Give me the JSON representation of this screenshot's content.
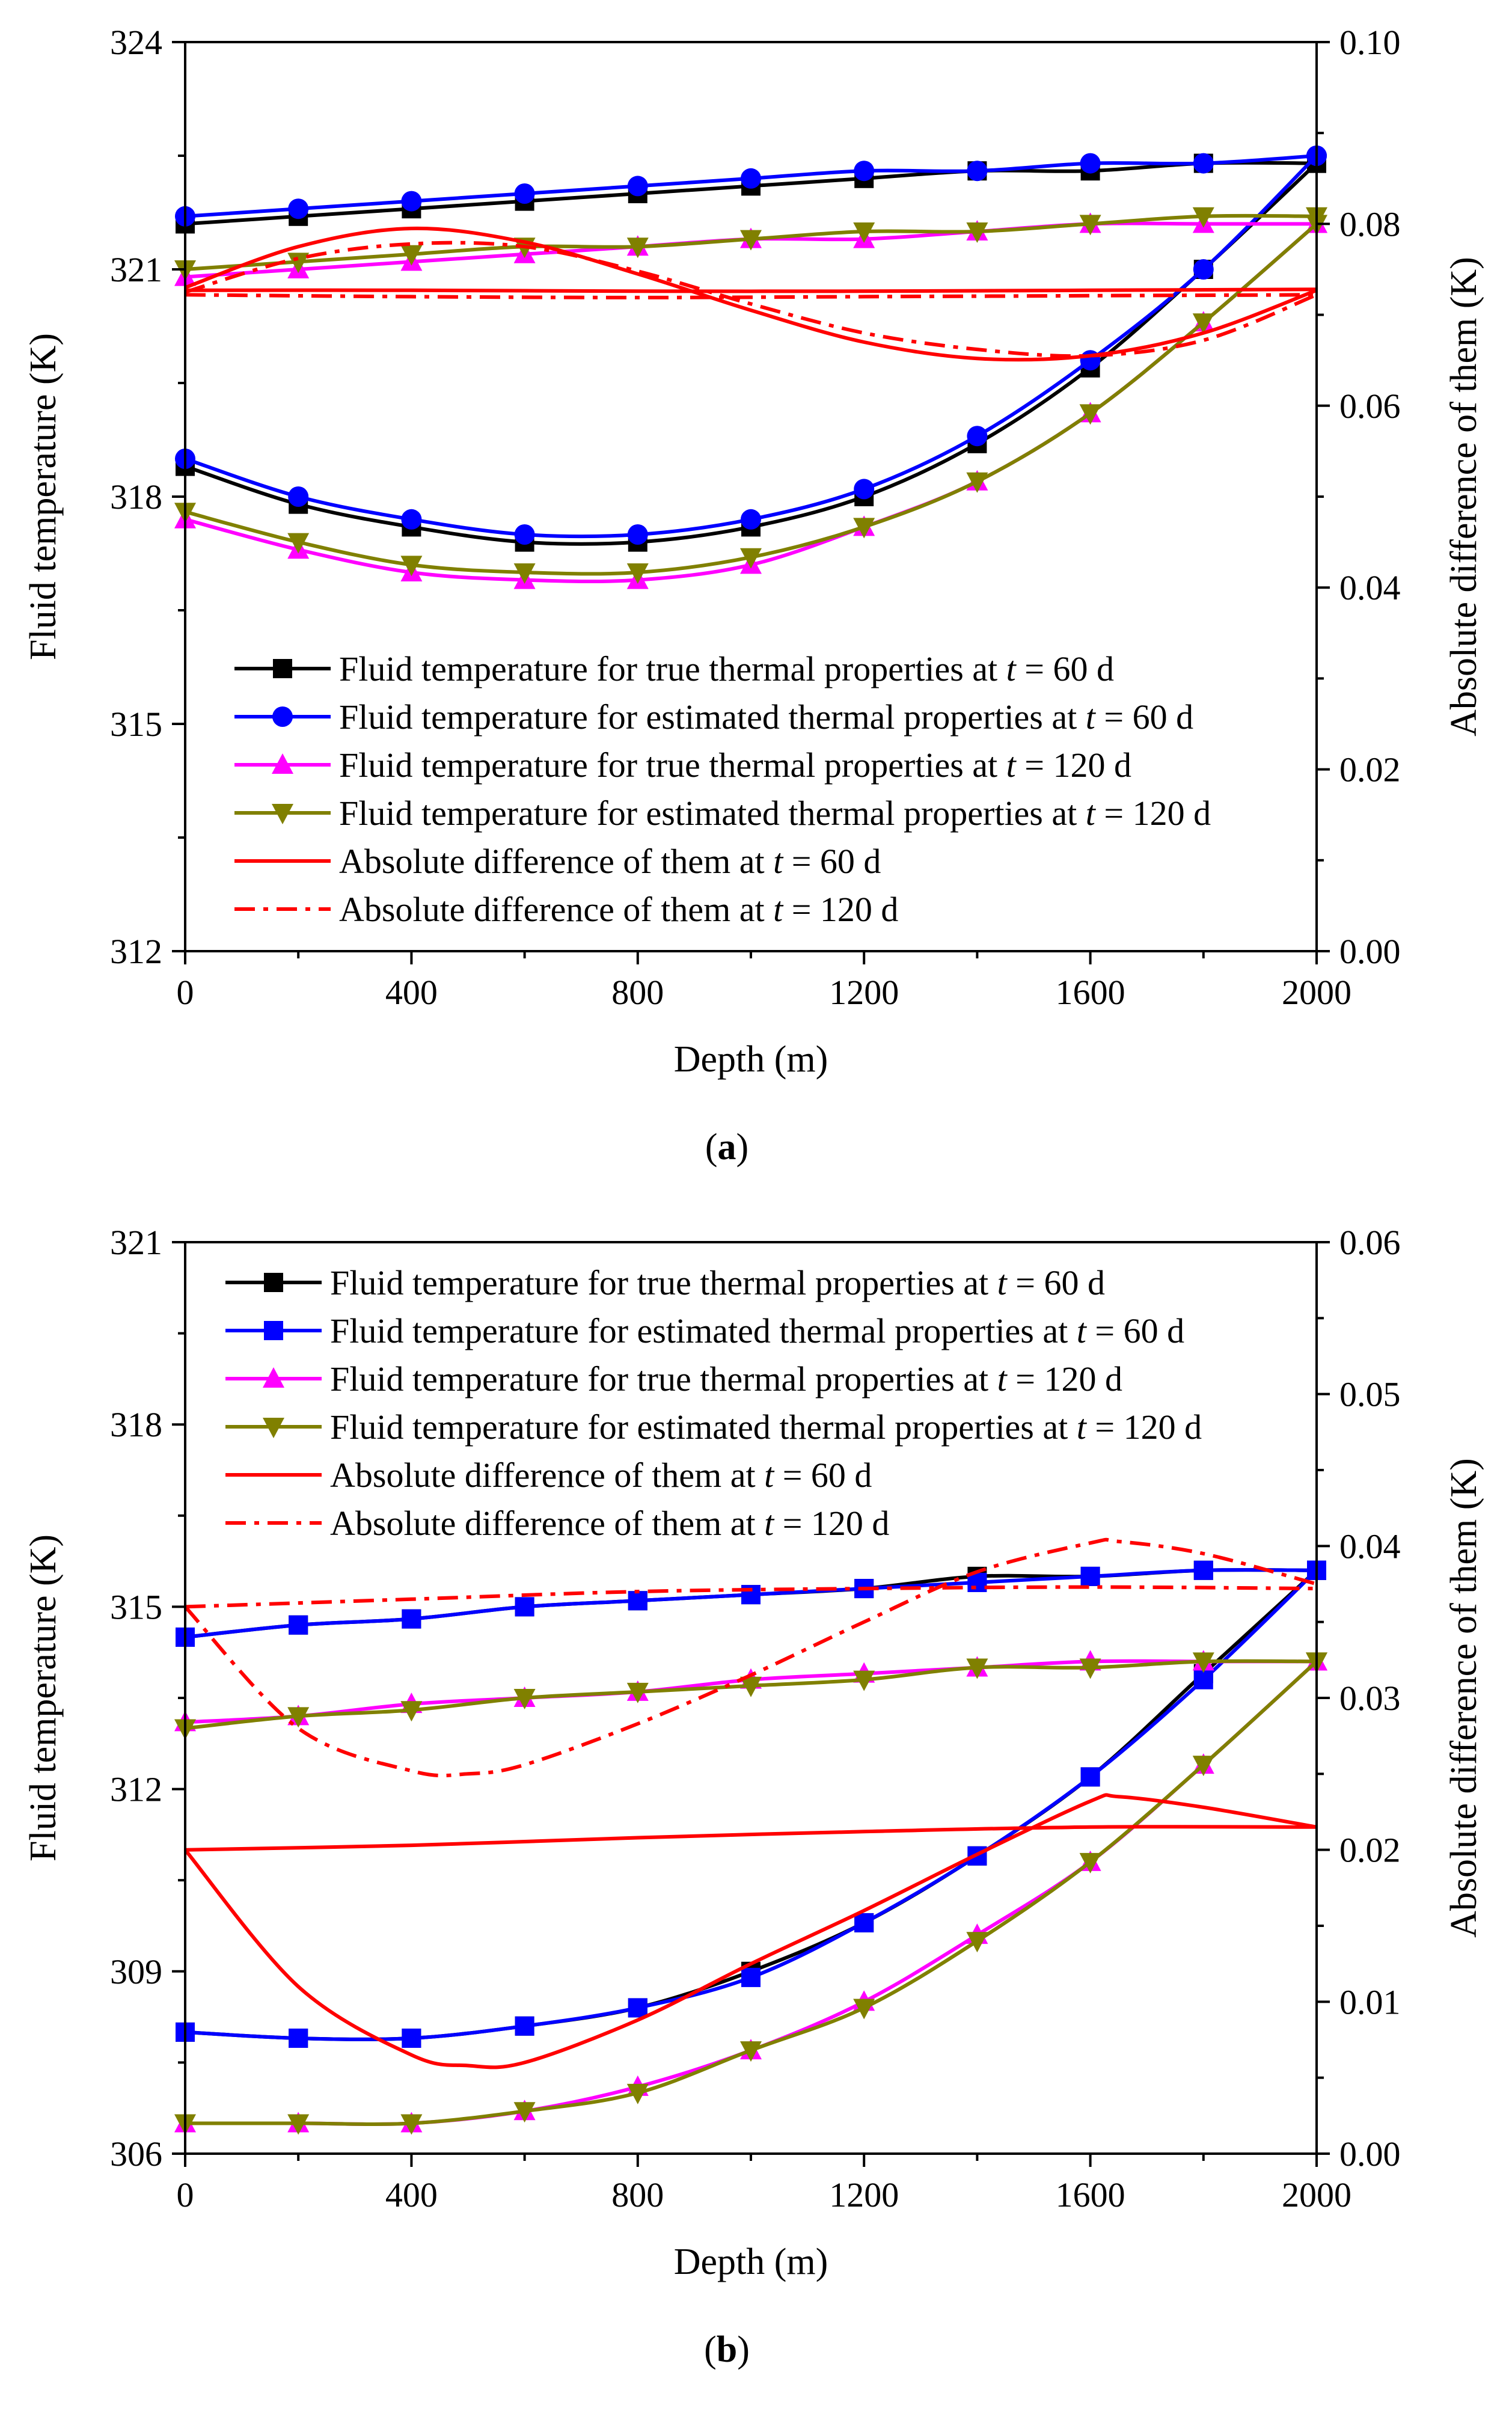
{
  "chart_data": [
    {
      "type": "line",
      "panel_label": "a",
      "xlabel": "Depth (m)",
      "ylabel": "Fluid temperature (K)",
      "y2label": "Absolute difference of them (K)",
      "xlim": [
        0,
        2000
      ],
      "ylim": [
        312,
        324
      ],
      "y2lim": [
        0,
        0.1
      ],
      "xticks": [
        0,
        400,
        800,
        1200,
        1600,
        2000
      ],
      "yticks": [
        312,
        315,
        318,
        321,
        324
      ],
      "y2ticks": [
        "0.00",
        "0.02",
        "0.04",
        "0.06",
        "0.08",
        "0.10"
      ],
      "grid": false,
      "legend_position": "center-left",
      "series": [
        {
          "name": "Fluid temperature for true thermal properties at t = 60 d",
          "legend_prefix": "Fluid temperature for true thermal properties at ",
          "legend_suffix": " = 60 d",
          "axis": "left",
          "color": "#000000",
          "marker": "square",
          "dash": "solid",
          "line_color": "#000000",
          "x": [
            0,
            200,
            400,
            600,
            800,
            1000,
            1200,
            1400,
            1600,
            1800,
            2000
          ],
          "y": [
            318.4,
            317.9,
            317.6,
            317.4,
            317.4,
            317.6,
            318.0,
            318.7,
            319.7,
            321.0,
            322.4
          ],
          "x2": [
            0,
            200,
            400,
            600,
            800,
            1000,
            1200,
            1400,
            1600,
            1800,
            2000
          ],
          "y2": [
            321.6,
            321.7,
            321.8,
            321.9,
            322.0,
            322.1,
            322.2,
            322.3,
            322.3,
            322.4,
            322.4
          ]
        },
        {
          "name": "Fluid temperature for estimated thermal properties at t = 60 d",
          "legend_prefix": "Fluid temperature for estimated thermal properties at ",
          "legend_suffix": " = 60 d",
          "axis": "left",
          "color": "#0000ff",
          "marker": "circle",
          "dash": "solid",
          "line_color": "#0000ff",
          "x": [
            0,
            200,
            400,
            600,
            800,
            1000,
            1200,
            1400,
            1600,
            1800,
            2000
          ],
          "y": [
            318.5,
            318.0,
            317.7,
            317.5,
            317.5,
            317.7,
            318.1,
            318.8,
            319.8,
            321.0,
            322.5
          ],
          "x2": [
            0,
            200,
            400,
            600,
            800,
            1000,
            1200,
            1400,
            1600,
            1800,
            2000
          ],
          "y2": [
            321.7,
            321.8,
            321.9,
            322.0,
            322.1,
            322.2,
            322.3,
            322.3,
            322.4,
            322.4,
            322.5
          ]
        },
        {
          "name": "Fluid temperature for true thermal properties at t = 120 d",
          "legend_prefix": "Fluid temperature for true thermal properties at ",
          "legend_suffix": " = 120 d",
          "axis": "left",
          "color": "#ff00ff",
          "marker": "triangle-up",
          "dash": "solid",
          "line_color": "#ff00ff",
          "x": [
            0,
            200,
            400,
            600,
            800,
            1000,
            1200,
            1400,
            1600,
            1800,
            2000
          ],
          "y": [
            317.7,
            317.3,
            317.0,
            316.9,
            316.9,
            317.1,
            317.6,
            318.2,
            319.1,
            320.3,
            321.6
          ],
          "x2": [
            0,
            200,
            400,
            600,
            800,
            1000,
            1200,
            1400,
            1600,
            1800,
            2000
          ],
          "y2": [
            320.9,
            321.0,
            321.1,
            321.2,
            321.3,
            321.4,
            321.4,
            321.5,
            321.6,
            321.6,
            321.6
          ]
        },
        {
          "name": "Fluid temperature for estimated thermal properties at t = 120 d",
          "legend_prefix": "Fluid temperature for estimated thermal properties at ",
          "legend_suffix": " = 120 d",
          "axis": "left",
          "color": "#808000",
          "marker": "triangle-down",
          "dash": "solid",
          "line_color": "#808000",
          "x": [
            0,
            200,
            400,
            600,
            800,
            1000,
            1200,
            1400,
            1600,
            1800,
            2000
          ],
          "y": [
            317.8,
            317.4,
            317.1,
            317.0,
            317.0,
            317.2,
            317.6,
            318.2,
            319.1,
            320.3,
            321.6
          ],
          "x2": [
            0,
            200,
            400,
            600,
            800,
            1000,
            1200,
            1400,
            1600,
            1800,
            2000
          ],
          "y2": [
            321.0,
            321.1,
            321.2,
            321.3,
            321.3,
            321.4,
            321.5,
            321.5,
            321.6,
            321.7,
            321.7
          ]
        },
        {
          "name": "Absolute difference of them at t = 60 d",
          "legend_prefix": "Absolute difference of them at ",
          "legend_suffix": " = 60 d",
          "axis": "right",
          "color": "#ff0000",
          "marker": "none",
          "dash": "solid",
          "line_color": "#ff0000",
          "x": [
            0,
            200,
            400,
            600,
            800,
            1000,
            1200,
            1400,
            1600,
            1800,
            2000
          ],
          "y": [
            0.073,
            0.0775,
            0.0795,
            0.078,
            0.0745,
            0.0705,
            0.067,
            0.0652,
            0.0655,
            0.068,
            0.0727
          ],
          "x2": [
            0,
            400,
            800,
            1200,
            1600,
            2000
          ],
          "y2": [
            0.0727,
            0.0727,
            0.0726,
            0.0726,
            0.0727,
            0.0728
          ]
        },
        {
          "name": "Absolute difference of them at t = 120 d",
          "legend_prefix": "Absolute difference of them at ",
          "legend_suffix": " = 120 d",
          "axis": "right",
          "color": "#ff0000",
          "marker": "none",
          "dash": "dashdot",
          "line_color": "#ff0000",
          "x": [
            0,
            200,
            400,
            600,
            800,
            1000,
            1200,
            1400,
            1600,
            1800,
            2000
          ],
          "y": [
            0.0725,
            0.0762,
            0.0778,
            0.0775,
            0.0748,
            0.0712,
            0.068,
            0.0662,
            0.0655,
            0.0672,
            0.0722
          ],
          "x2": [
            0,
            400,
            800,
            1200,
            1600,
            2000
          ],
          "y2": [
            0.0722,
            0.072,
            0.0719,
            0.072,
            0.0721,
            0.0722
          ]
        }
      ]
    },
    {
      "type": "line",
      "panel_label": "b",
      "xlabel": "Depth (m)",
      "ylabel": "Fluid temperature (K)",
      "y2label": "Absolute difference of them (K)",
      "xlim": [
        0,
        2000
      ],
      "ylim": [
        306,
        321
      ],
      "y2lim": [
        0,
        0.06
      ],
      "xticks": [
        0,
        400,
        800,
        1200,
        1600,
        2000
      ],
      "yticks": [
        306,
        309,
        312,
        315,
        318,
        321
      ],
      "y2ticks": [
        "0.00",
        "0.01",
        "0.02",
        "0.03",
        "0.04",
        "0.05",
        "0.06"
      ],
      "grid": false,
      "legend_position": "top-left",
      "series": [
        {
          "name": "Fluid temperature for true thermal properties at t = 60 d",
          "legend_prefix": "Fluid temperature for true thermal properties at ",
          "legend_suffix": " = 60 d",
          "axis": "left",
          "color": "#000000",
          "marker": "square",
          "dash": "solid",
          "line_color": "#000000",
          "x": [
            0,
            200,
            400,
            600,
            800,
            1000,
            1200,
            1400,
            1600,
            1800,
            2000
          ],
          "y": [
            308.0,
            307.9,
            307.9,
            308.1,
            308.4,
            309.0,
            309.8,
            310.9,
            312.2,
            313.9,
            315.6
          ],
          "x2": [
            0,
            200,
            400,
            600,
            800,
            1000,
            1200,
            1400,
            1600,
            1800,
            2000
          ],
          "y2": [
            314.5,
            314.7,
            314.8,
            315.0,
            315.1,
            315.2,
            315.3,
            315.5,
            315.5,
            315.6,
            315.6
          ]
        },
        {
          "name": "Fluid temperature for estimated thermal properties at t = 60 d",
          "legend_prefix": "Fluid temperature for estimated thermal properties at ",
          "legend_suffix": " = 60 d",
          "axis": "left",
          "color": "#0000ff",
          "marker": "square",
          "dash": "solid",
          "line_color": "#0000ff",
          "x": [
            0,
            200,
            400,
            600,
            800,
            1000,
            1200,
            1400,
            1600,
            1800,
            2000
          ],
          "y": [
            308.0,
            307.9,
            307.9,
            308.1,
            308.4,
            308.9,
            309.8,
            310.9,
            312.2,
            313.8,
            315.6
          ],
          "x2": [
            0,
            200,
            400,
            600,
            800,
            1000,
            1200,
            1400,
            1600,
            1800,
            2000
          ],
          "y2": [
            314.5,
            314.7,
            314.8,
            315.0,
            315.1,
            315.2,
            315.3,
            315.4,
            315.5,
            315.6,
            315.6
          ]
        },
        {
          "name": "Fluid temperature for true thermal properties at t = 120 d",
          "legend_prefix": "Fluid temperature for true thermal properties at ",
          "legend_suffix": " = 120 d",
          "axis": "left",
          "color": "#ff00ff",
          "marker": "triangle-up",
          "dash": "solid",
          "line_color": "#ff00ff",
          "x": [
            0,
            200,
            400,
            600,
            800,
            1000,
            1200,
            1400,
            1600,
            1800,
            2000
          ],
          "y": [
            306.5,
            306.5,
            306.5,
            306.7,
            307.1,
            307.7,
            308.5,
            309.6,
            310.8,
            312.4,
            314.1
          ],
          "x2": [
            0,
            200,
            400,
            600,
            800,
            1000,
            1200,
            1400,
            1600,
            1800,
            2000
          ],
          "y2": [
            313.1,
            313.2,
            313.4,
            313.5,
            313.6,
            313.8,
            313.9,
            314.0,
            314.1,
            314.1,
            314.1
          ]
        },
        {
          "name": "Fluid temperature for estimated thermal properties at t = 120 d",
          "legend_prefix": "Fluid temperature for estimated thermal properties at ",
          "legend_suffix": " = 120 d",
          "axis": "left",
          "color": "#808000",
          "marker": "triangle-down",
          "dash": "solid",
          "line_color": "#808000",
          "x": [
            0,
            200,
            400,
            600,
            800,
            1000,
            1200,
            1400,
            1600,
            1800,
            2000
          ],
          "y": [
            306.5,
            306.5,
            306.5,
            306.7,
            307.0,
            307.7,
            308.4,
            309.5,
            310.8,
            312.4,
            314.1
          ],
          "x2": [
            0,
            200,
            400,
            600,
            800,
            1000,
            1200,
            1400,
            1600,
            1800,
            2000
          ],
          "y2": [
            313.0,
            313.2,
            313.3,
            313.5,
            313.6,
            313.7,
            313.8,
            314.0,
            314.0,
            314.1,
            314.1
          ]
        },
        {
          "name": "Absolute difference of them at t = 60 d",
          "legend_prefix": "Absolute difference of them at ",
          "legend_suffix": " = 60 d",
          "axis": "right",
          "color": "#ff0000",
          "marker": "none",
          "dash": "solid",
          "line_color": "#ff0000",
          "x": [
            0,
            200,
            400,
            500,
            600,
            800,
            1000,
            1200,
            1400,
            1600,
            1650,
            1800,
            2000
          ],
          "y": [
            0.02,
            0.011,
            0.0065,
            0.0058,
            0.006,
            0.0088,
            0.0125,
            0.016,
            0.0197,
            0.0232,
            0.0235,
            0.0228,
            0.0215
          ],
          "x2": [
            0,
            400,
            800,
            1200,
            1600,
            2000
          ],
          "y2": [
            0.02,
            0.0203,
            0.0208,
            0.0212,
            0.0215,
            0.0215
          ]
        },
        {
          "name": "Absolute difference of them at t = 120 d",
          "legend_prefix": "Absolute difference of them at ",
          "legend_suffix": " = 120 d",
          "axis": "right",
          "color": "#ff0000",
          "marker": "none",
          "dash": "dashdot",
          "line_color": "#ff0000",
          "x": [
            0,
            200,
            400,
            500,
            600,
            800,
            1000,
            1200,
            1400,
            1600,
            1650,
            1800,
            2000
          ],
          "y": [
            0.036,
            0.028,
            0.0252,
            0.025,
            0.0256,
            0.0283,
            0.0315,
            0.035,
            0.0383,
            0.0402,
            0.0403,
            0.0395,
            0.0375
          ],
          "x2": [
            0,
            400,
            800,
            1200,
            1600,
            2000
          ],
          "y2": [
            0.036,
            0.0365,
            0.037,
            0.0372,
            0.0373,
            0.0372
          ]
        }
      ]
    }
  ]
}
